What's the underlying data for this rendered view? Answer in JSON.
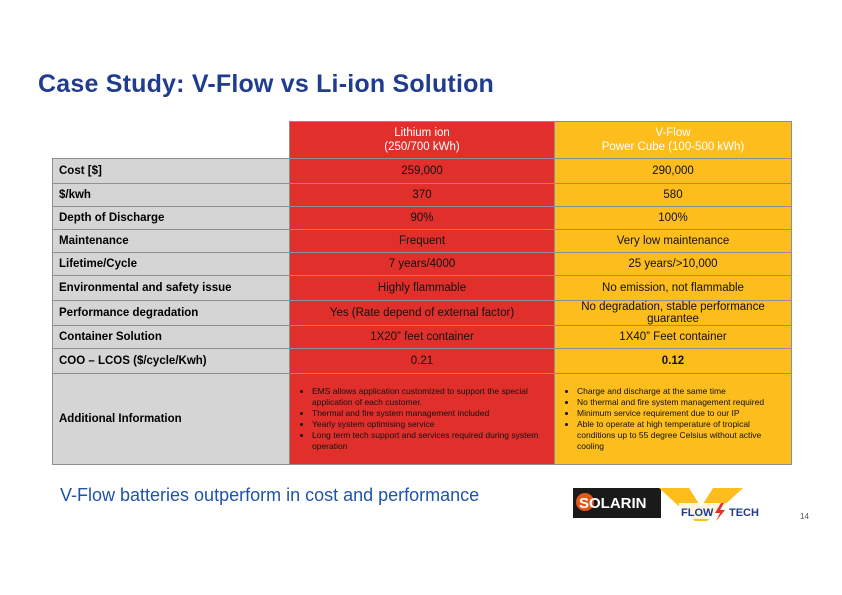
{
  "title": "Case Study: V-Flow vs Li-ion Solution",
  "columns": {
    "li_ion": {
      "line1": "Lithium ion",
      "line2": "(250/700 kWh)"
    },
    "vflow": {
      "line1": "V-Flow",
      "line2": "Power Cube (100-500 kWh)"
    }
  },
  "rows": [
    {
      "label": "Cost [$]",
      "li_ion": "259,000",
      "vflow": "290,000"
    },
    {
      "label": "$/kwh",
      "li_ion": "370",
      "vflow": "580"
    },
    {
      "label": "Depth of Discharge",
      "li_ion": "90%",
      "vflow": "100%"
    },
    {
      "label": "Maintenance",
      "li_ion": "Frequent",
      "vflow": "Very low maintenance"
    },
    {
      "label": "Lifetime/Cycle",
      "li_ion": "7 years/4000",
      "vflow": "25 years/>10,000"
    },
    {
      "label": "Environmental and safety issue",
      "li_ion": "Highly flammable",
      "vflow": "No emission, not flammable"
    },
    {
      "label": "Performance degradation",
      "li_ion": "Yes (Rate depend of external factor)",
      "vflow": "No degradation, stable performance guarantee"
    },
    {
      "label": "Container Solution",
      "li_ion": "1X20” feet container",
      "vflow": "1X40” Feet container"
    },
    {
      "label": "COO – LCOS ($/cycle/Kwh)",
      "li_ion": "0.21",
      "vflow": "0.12"
    }
  ],
  "additional": {
    "label": "Additional Information",
    "li_ion": [
      "EMS allows application customized to support the special application of each customer.",
      "Thermal and fire system management included",
      "Yearly system optimising service",
      "Long term tech support and services required during system operation"
    ],
    "vflow": [
      "Charge and discharge at the same time",
      "No thermal and fire system management required",
      "Minimum service requirement due to our IP",
      "Able to operate at high temperature of tropical conditions up to 55 degree Celsius without active cooling"
    ]
  },
  "tagline": "V-Flow batteries outperform in cost and performance",
  "logo": {
    "left": "SOLARIN",
    "right_top": "FLOW",
    "right_bottom": "TECH"
  },
  "page_number": "14",
  "colors": {
    "title": "#1f3c8f",
    "li_ion": "#e1302c",
    "vflow": "#fcbd1d",
    "label_bg": "#d5d5d5",
    "tagline": "#1f54a8"
  }
}
